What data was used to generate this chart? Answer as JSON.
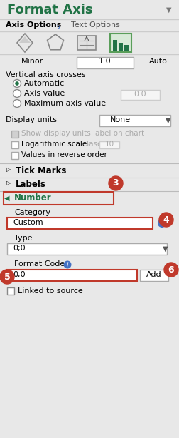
{
  "title": "Format Axis",
  "title_color": "#217346",
  "bg_color": "#e8e8e8",
  "tab_active": "Axis Options",
  "tab_inactive": "Text Options",
  "minor_label": "Minor",
  "minor_value": "1.0",
  "auto_label": "Auto",
  "vertical_axis_crosses": "Vertical axis crosses",
  "radio_options": [
    "Automatic",
    "Axis value",
    "Maximum axis value"
  ],
  "axis_value_box": "0.0",
  "display_units_label": "Display units",
  "display_units_value": "None",
  "checkbox_items": [
    "Show display units label on chart",
    "Logarithmic scale",
    "Values in reverse order"
  ],
  "log_base_label": "Base",
  "log_base_value": "10",
  "collapsible_items": [
    "Tick Marks",
    "Labels"
  ],
  "number_section": "Number",
  "number_section_color": "#217346",
  "category_label": "Category",
  "category_value": "Custom",
  "type_label": "Type",
  "type_value": "0;0",
  "format_code_label": "Format Code",
  "format_code_value": "0;0",
  "add_button": "Add",
  "linked_checkbox": "Linked to source",
  "callout_color": "#c0392b",
  "input_border_color": "#c0392b",
  "separator_color": "#bbbbbb",
  "info_color": "#4472c4"
}
